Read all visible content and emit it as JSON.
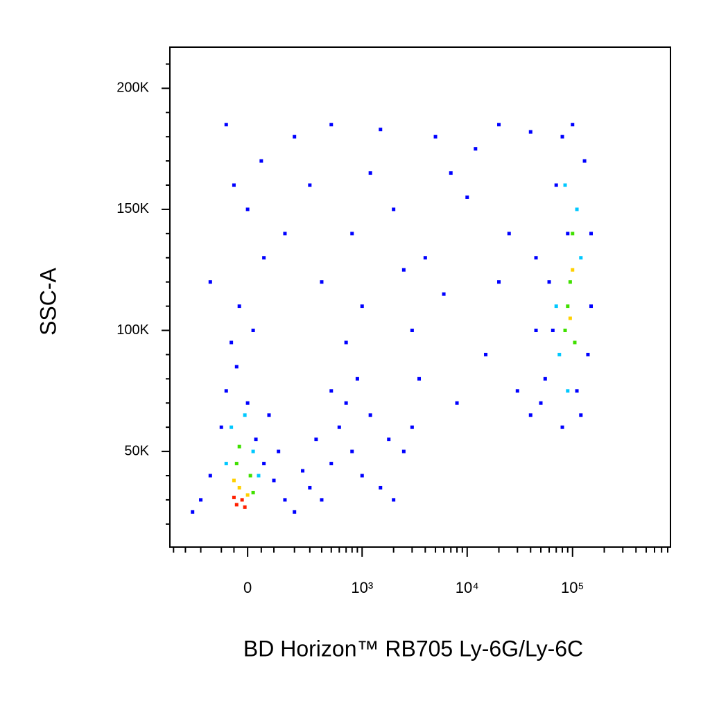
{
  "chart_data": {
    "type": "scatter",
    "x_label": "BD Horizon™ RB705 Ly-6G/Ly-6C",
    "y_label": "SSC-A",
    "xscale": "biexponential",
    "xlim": [
      -436,
      850000
    ],
    "ylim": [
      10500,
      217000
    ],
    "xticks": [
      0,
      {
        "value": 1000,
        "label": "10³"
      },
      {
        "value": 10000,
        "label": "10⁴"
      },
      {
        "value": 100000,
        "label": "10⁵"
      }
    ],
    "xminorticks": [
      -400,
      -300,
      -200,
      -100,
      -50,
      50,
      100,
      200,
      300,
      400,
      500,
      600,
      700,
      800,
      900,
      2000,
      3000,
      4000,
      5000,
      6000,
      7000,
      8000,
      9000,
      20000,
      30000,
      40000,
      50000,
      60000,
      70000,
      80000,
      90000,
      200000,
      300000,
      400000,
      500000,
      600000,
      700000,
      800000
    ],
    "yticks": [
      {
        "value": 50000,
        "label": "50K"
      },
      {
        "value": 100000,
        "label": "100K"
      },
      {
        "value": 150000,
        "label": "150K"
      },
      {
        "value": 200000,
        "label": "200K"
      }
    ],
    "yminorticks": [
      20000,
      30000,
      40000,
      60000,
      70000,
      80000,
      90000,
      110000,
      120000,
      130000,
      140000,
      160000,
      170000,
      180000,
      190000,
      210000
    ],
    "series": [
      {
        "color": "#0000ff",
        "x": [
          -150,
          -100,
          -80,
          -40,
          0,
          30,
          60,
          100,
          150,
          200,
          -200,
          -250,
          -60,
          20,
          -30,
          80,
          120,
          250,
          300,
          400,
          500,
          350,
          600,
          800,
          1000,
          1500,
          2000,
          700,
          1200,
          1800,
          2500,
          3000,
          900,
          500,
          -80,
          50,
          200,
          500,
          1500,
          5000,
          20000,
          40000,
          0,
          300,
          800,
          2000,
          4000,
          10000,
          25000,
          60,
          400,
          1000,
          3000,
          6000,
          15000,
          30000,
          40000,
          8000,
          20000,
          150,
          700,
          2500,
          1200,
          7000,
          12000,
          3500,
          45000,
          -150,
          -50,
          55000,
          60000,
          70000,
          80000,
          130000,
          150000,
          140000,
          120000,
          80000,
          50000,
          90000,
          100000,
          65000,
          110000,
          150000,
          45000
        ],
        "values": [
          40000,
          60000,
          75000,
          85000,
          70000,
          55000,
          45000,
          38000,
          30000,
          25000,
          30000,
          25000,
          95000,
          100000,
          110000,
          65000,
          50000,
          42000,
          35000,
          30000,
          45000,
          55000,
          60000,
          50000,
          40000,
          35000,
          30000,
          70000,
          65000,
          55000,
          50000,
          60000,
          80000,
          75000,
          185000,
          170000,
          180000,
          185000,
          183000,
          180000,
          185000,
          182000,
          150000,
          160000,
          140000,
          150000,
          130000,
          155000,
          140000,
          130000,
          120000,
          110000,
          100000,
          115000,
          90000,
          75000,
          65000,
          70000,
          120000,
          140000,
          95000,
          125000,
          165000,
          165000,
          175000,
          80000,
          100000,
          120000,
          160000,
          80000,
          120000,
          160000,
          180000,
          170000,
          140000,
          90000,
          65000,
          60000,
          70000,
          140000,
          185000,
          100000,
          75000,
          110000,
          130000
        ]
      },
      {
        "color": "#00c8ff",
        "x": [
          -60,
          20,
          -10,
          40,
          -80,
          85000,
          75000,
          110000,
          90000,
          120000,
          70000
        ],
        "values": [
          60000,
          50000,
          65000,
          40000,
          45000,
          160000,
          90000,
          150000,
          75000,
          130000,
          110000
        ]
      },
      {
        "color": "#40e000",
        "x": [
          -40,
          10,
          -30,
          20,
          95000,
          85000,
          100000,
          90000,
          105000
        ],
        "values": [
          45000,
          40000,
          52000,
          33000,
          120000,
          100000,
          140000,
          110000,
          95000
        ]
      },
      {
        "color": "#ffd000",
        "x": [
          -30,
          0,
          -50,
          95000,
          100000
        ],
        "values": [
          35000,
          32000,
          38000,
          105000,
          125000
        ]
      },
      {
        "color": "#ff2000",
        "x": [
          -40,
          -20,
          -50,
          -10
        ],
        "values": [
          28000,
          30000,
          31000,
          27000
        ]
      }
    ]
  }
}
